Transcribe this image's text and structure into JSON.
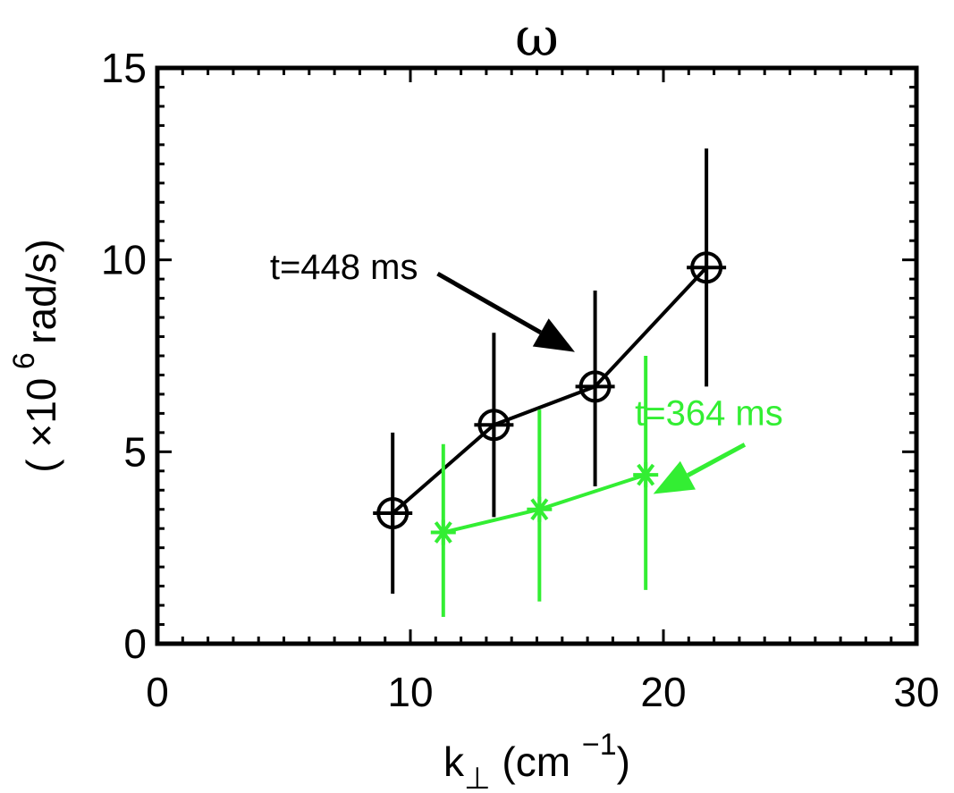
{
  "chart_data": {
    "type": "line",
    "title": "ω",
    "xlabel": {
      "main": "k",
      "sub": "⊥",
      "unit": "(cm",
      "sup": "−1",
      "close": ")"
    },
    "ylabel": {
      "open": "( ×10",
      "sup": "6",
      "unit": "rad/s)"
    },
    "xlim": [
      0,
      30
    ],
    "ylim": [
      0,
      15
    ],
    "xticks": [
      0,
      10,
      20,
      30
    ],
    "yticks": [
      0,
      5,
      10,
      15
    ],
    "series": [
      {
        "marker": "circle-plus",
        "color": "#000000",
        "x": [
          9.3,
          13.3,
          17.3,
          21.7
        ],
        "y": [
          3.4,
          5.7,
          6.7,
          9.8
        ],
        "yerr_low": [
          1.3,
          3.3,
          4.1,
          6.7
        ],
        "yerr_high": [
          5.5,
          8.1,
          9.2,
          12.9
        ]
      },
      {
        "marker": "asterisk",
        "color": "#33ee33",
        "x": [
          11.3,
          15.1,
          19.3
        ],
        "y": [
          2.9,
          3.5,
          4.4
        ],
        "yerr_low": [
          0.7,
          1.1,
          1.4
        ],
        "yerr_high": [
          5.2,
          6.1,
          7.5
        ]
      }
    ],
    "annotations": [
      {
        "text": "t=448 ms",
        "color": "#000000",
        "x": 10.3,
        "y": 9.5,
        "arrow_to": [
          16.5,
          7.6
        ]
      },
      {
        "text": "t=364 ms",
        "color": "#33ee33",
        "x": 21.8,
        "y": 5.7,
        "arrow_to": [
          19.6,
          3.9
        ]
      }
    ],
    "grid": false
  }
}
